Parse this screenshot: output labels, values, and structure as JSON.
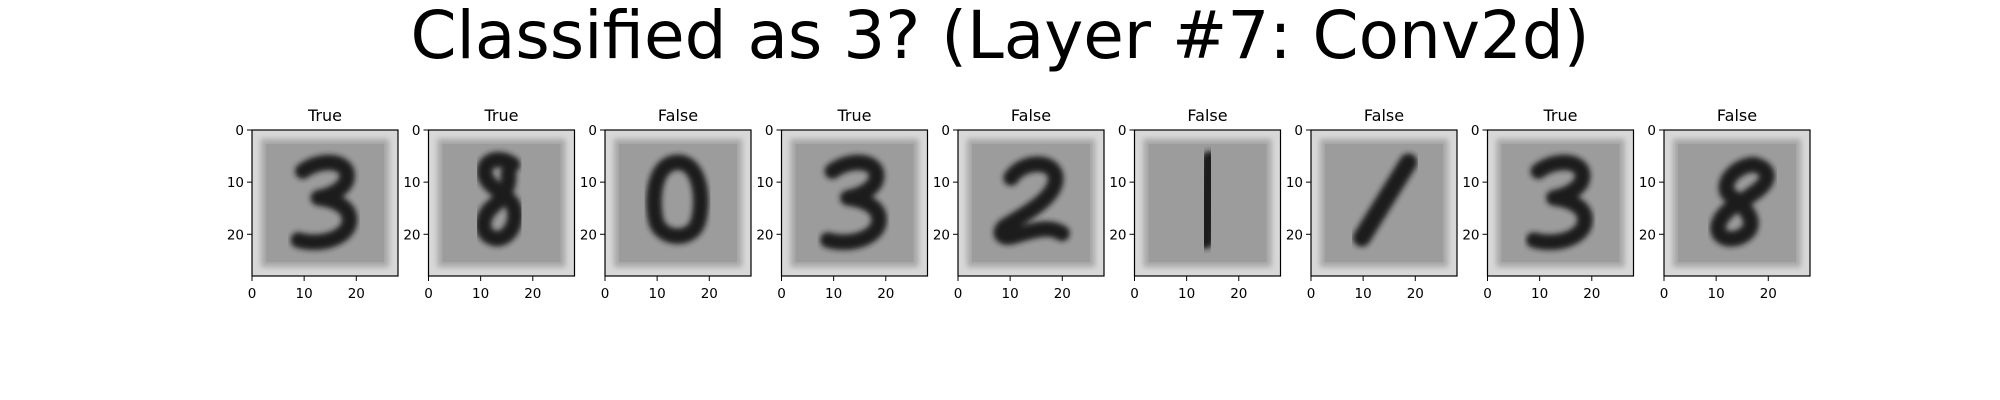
{
  "title": "Classified as 3? (Layer #7: Conv2d)",
  "chart_data": {
    "type": "image_grid",
    "title": "Classified as 3? (Layer #7: Conv2d)",
    "panels": [
      {
        "label": "True",
        "digit": "3"
      },
      {
        "label": "True",
        "digit": "8"
      },
      {
        "label": "False",
        "digit": "0"
      },
      {
        "label": "True",
        "digit": "3"
      },
      {
        "label": "False",
        "digit": "2"
      },
      {
        "label": "False",
        "digit": "1"
      },
      {
        "label": "False",
        "digit": "1"
      },
      {
        "label": "True",
        "digit": "3"
      },
      {
        "label": "False",
        "digit": "8"
      }
    ],
    "xlim": [
      0,
      28
    ],
    "ylim": [
      28,
      0
    ],
    "xticks": [
      0,
      10,
      20
    ],
    "yticks": [
      0,
      10,
      20
    ],
    "colormap": "gray"
  }
}
